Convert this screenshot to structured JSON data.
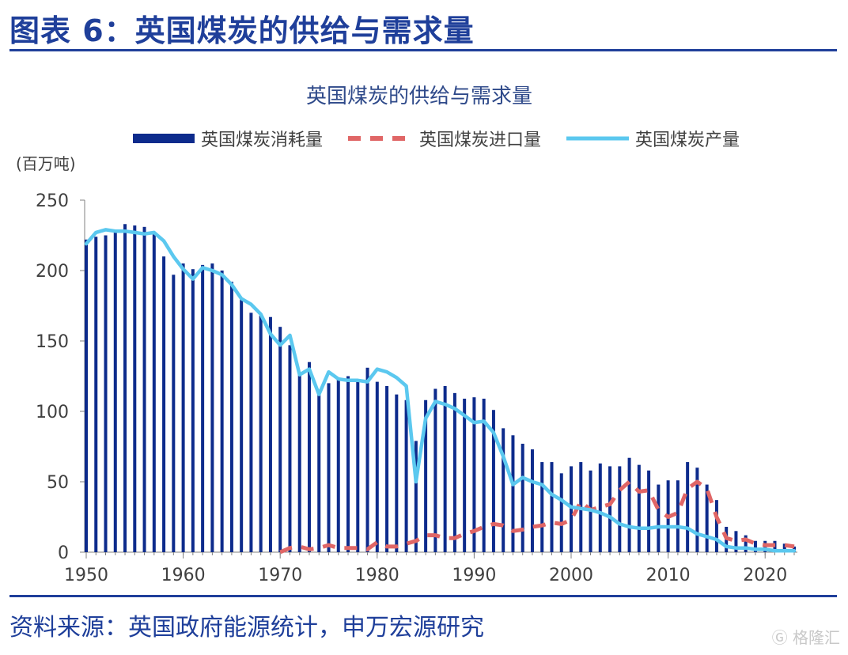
{
  "figure": {
    "title": "图表 6：英国煤炭的供给与需求量",
    "source": "资料来源：英国政府能源统计，申万宏源研究",
    "watermark": "Ⓖ 格隆汇"
  },
  "colors": {
    "accent": "#1f3f9a",
    "consumption": "#0d2b8c",
    "imports": "#e06666",
    "production": "#5bc8ef",
    "axis_text": "#404040"
  },
  "chart_data": {
    "type": "bar",
    "title": "英国煤炭的供给与需求量",
    "unit_label": "(百万吨)",
    "ylim": [
      0,
      250
    ],
    "yticks": [
      0,
      50,
      100,
      150,
      200,
      250
    ],
    "xticks": [
      1950,
      1960,
      1970,
      1980,
      1990,
      2000,
      2010,
      2020
    ],
    "xlim": [
      1950,
      2023
    ],
    "grid": false,
    "legend_position": "top",
    "x": [
      1950,
      1951,
      1952,
      1953,
      1954,
      1955,
      1956,
      1957,
      1958,
      1959,
      1960,
      1961,
      1962,
      1963,
      1964,
      1965,
      1966,
      1967,
      1968,
      1969,
      1970,
      1971,
      1972,
      1973,
      1974,
      1975,
      1976,
      1977,
      1978,
      1979,
      1980,
      1981,
      1982,
      1983,
      1984,
      1985,
      1986,
      1987,
      1988,
      1989,
      1990,
      1991,
      1992,
      1993,
      1994,
      1995,
      1996,
      1997,
      1998,
      1999,
      2000,
      2001,
      2002,
      2003,
      2004,
      2005,
      2006,
      2007,
      2008,
      2009,
      2010,
      2011,
      2012,
      2013,
      2014,
      2015,
      2016,
      2017,
      2018,
      2019,
      2020,
      2021,
      2022,
      2023
    ],
    "series": [
      {
        "name": "英国煤炭消耗量",
        "style": "bar",
        "values": [
          222,
          224,
          225,
          227,
          233,
          232,
          231,
          227,
          210,
          197,
          205,
          201,
          204,
          205,
          200,
          192,
          180,
          170,
          168,
          167,
          160,
          147,
          127,
          135,
          113,
          120,
          124,
          125,
          121,
          131,
          121,
          118,
          112,
          108,
          79,
          108,
          116,
          118,
          113,
          109,
          110,
          109,
          101,
          88,
          83,
          77,
          73,
          64,
          64,
          56,
          61,
          64,
          58,
          63,
          61,
          61,
          67,
          62,
          58,
          48,
          51,
          51,
          64,
          60,
          48,
          37,
          18,
          15,
          12,
          8,
          8,
          8,
          6,
          4
        ]
      },
      {
        "name": "英国煤炭进口量",
        "style": "dashed-line",
        "values": [
          null,
          null,
          null,
          null,
          null,
          null,
          null,
          null,
          null,
          null,
          null,
          null,
          null,
          null,
          null,
          null,
          null,
          null,
          null,
          null,
          0,
          3,
          4,
          2,
          3,
          5,
          3,
          3,
          3,
          2,
          7,
          4,
          4,
          6,
          8,
          12,
          12,
          10,
          10,
          13,
          15,
          18,
          20,
          19,
          15,
          16,
          18,
          19,
          21,
          20,
          23,
          36,
          30,
          32,
          34,
          44,
          50,
          43,
          44,
          30,
          25,
          28,
          45,
          50,
          45,
          25,
          10,
          8,
          9,
          6,
          5,
          5,
          5,
          4
        ]
      },
      {
        "name": "英国煤炭产量",
        "style": "line",
        "values": [
          219,
          227,
          229,
          228,
          228,
          227,
          226,
          227,
          221,
          210,
          201,
          194,
          202,
          200,
          197,
          190,
          180,
          176,
          169,
          155,
          147,
          154,
          126,
          130,
          112,
          128,
          123,
          122,
          122,
          121,
          130,
          128,
          124,
          118,
          50,
          95,
          107,
          105,
          102,
          97,
          92,
          93,
          85,
          68,
          48,
          53,
          50,
          48,
          41,
          37,
          32,
          31,
          30,
          28,
          25,
          20,
          18,
          17,
          17,
          18,
          18,
          18,
          17,
          13,
          11,
          9,
          4,
          3,
          3,
          2,
          2,
          1,
          1,
          1
        ]
      }
    ]
  }
}
